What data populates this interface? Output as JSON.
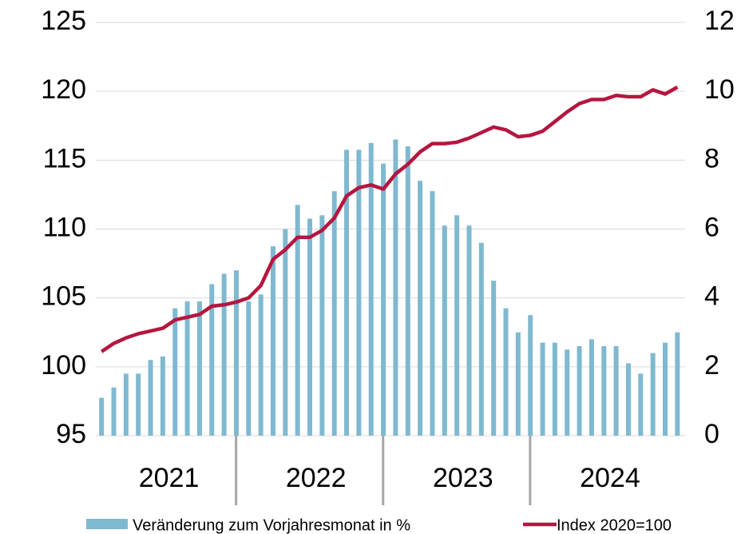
{
  "chart_data": {
    "type": "bar-line",
    "categories": [
      null,
      null,
      null,
      null,
      null,
      "2021",
      null,
      null,
      null,
      null,
      null,
      null,
      null,
      null,
      null,
      null,
      null,
      "2022",
      null,
      null,
      null,
      null,
      null,
      null,
      null,
      null,
      null,
      null,
      null,
      "2023",
      null,
      null,
      null,
      null,
      null,
      null,
      null,
      null,
      null,
      null,
      null,
      "2024",
      null,
      null,
      null,
      null,
      null,
      null
    ],
    "series": [
      {
        "name": "Veränderung zum Vorjahresmonat in %",
        "type": "bar",
        "axis": "y2",
        "color": "#7fb9d0",
        "values": [
          1.1,
          1.4,
          1.8,
          1.8,
          2.2,
          2.3,
          3.7,
          3.9,
          3.9,
          4.4,
          4.7,
          4.8,
          3.9,
          4.1,
          5.5,
          6.0,
          6.7,
          6.3,
          6.4,
          7.1,
          8.3,
          8.3,
          8.5,
          7.9,
          8.6,
          8.4,
          7.4,
          7.1,
          6.1,
          6.4,
          6.1,
          5.6,
          4.5,
          3.7,
          3.0,
          3.5,
          2.7,
          2.7,
          2.5,
          2.6,
          2.8,
          2.6,
          2.6,
          2.1,
          1.8,
          2.4,
          2.7,
          3.0
        ]
      },
      {
        "name": "Index 2020=100",
        "type": "line",
        "axis": "y",
        "color": "#b5163f",
        "values": [
          101.1,
          101.7,
          102.1,
          102.4,
          102.6,
          102.8,
          103.4,
          103.6,
          103.8,
          104.4,
          104.5,
          104.7,
          105.0,
          105.9,
          107.8,
          108.5,
          109.4,
          109.4,
          109.9,
          110.8,
          112.4,
          113.0,
          113.2,
          112.9,
          114.0,
          114.7,
          115.6,
          116.2,
          116.2,
          116.3,
          116.6,
          117.0,
          117.4,
          117.2,
          116.7,
          116.8,
          117.1,
          117.8,
          118.5,
          119.1,
          119.4,
          119.4,
          119.7,
          119.6,
          119.6,
          120.1,
          119.8,
          120.3
        ]
      }
    ],
    "ylim": [
      95,
      125
    ],
    "yticks": [
      95,
      100,
      105,
      110,
      115,
      120,
      125
    ],
    "y2lim": [
      0,
      12
    ],
    "y2ticks": [
      0,
      2,
      4,
      6,
      8,
      10,
      12
    ],
    "grid": true,
    "legend": "bottom"
  }
}
